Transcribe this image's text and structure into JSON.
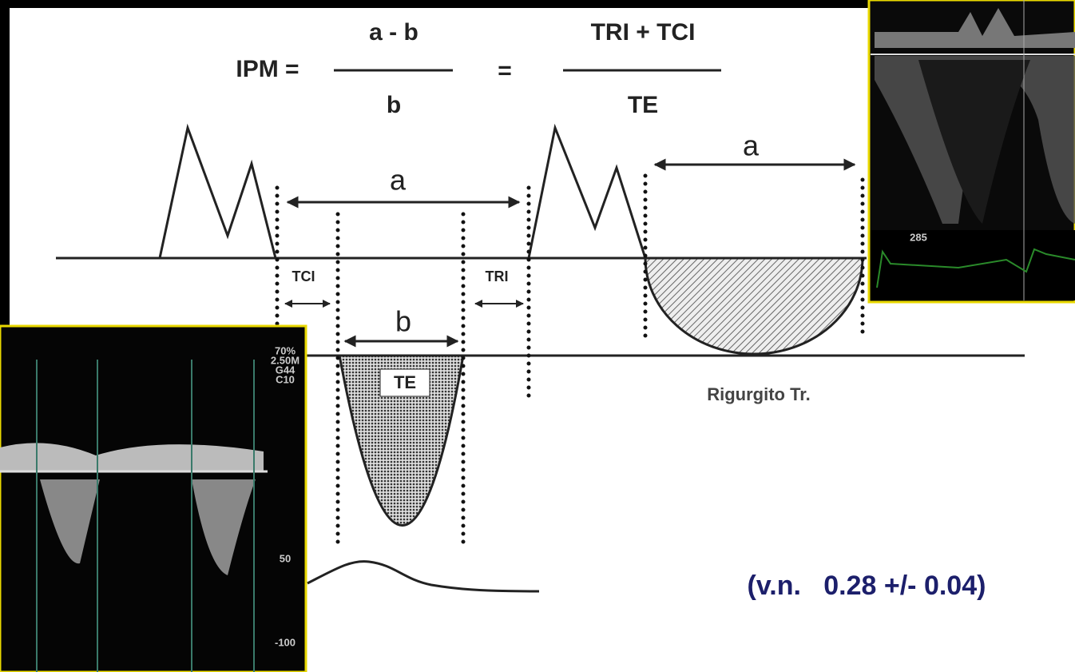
{
  "formula": {
    "lhs": "IPM =",
    "num1": "a - b",
    "den1": "b",
    "eq": "=",
    "num2": "TRI + TCI",
    "den2": "TE"
  },
  "labels": {
    "a_left": "a",
    "a_right": "a",
    "tci": "TCI",
    "tri": "TRI",
    "b": "b",
    "te": "TE",
    "regurgitation": "Rigurgito Tr."
  },
  "echo_left": {
    "settings": [
      "70%",
      "2.50M",
      "G44",
      "C10"
    ],
    "scale": [
      "50",
      "-100"
    ]
  },
  "echo_right": {
    "readout": "285"
  },
  "normal_value": "(v.n.   0.28 +/- 0.04)"
}
